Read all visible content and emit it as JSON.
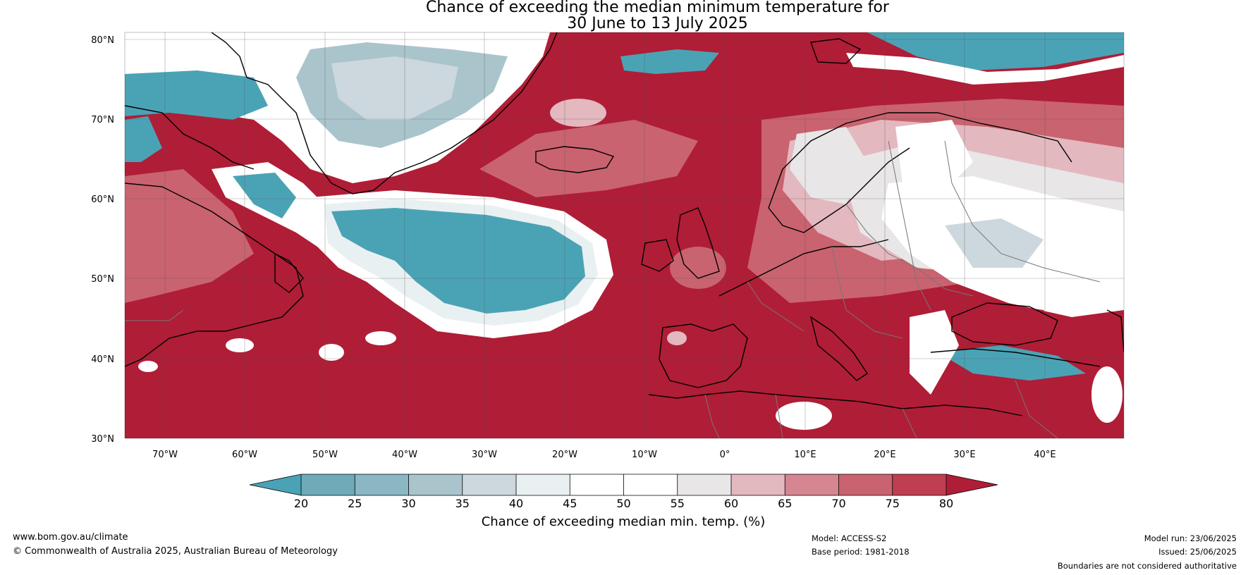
{
  "title": {
    "line1": "Chance of exceeding the median minimum temperature for",
    "line2": "30 June to 13 July 2025"
  },
  "map": {
    "lat_labels": [
      "80°N",
      "70°N",
      "60°N",
      "50°N",
      "40°N",
      "30°N"
    ],
    "lon_labels": [
      "70°W",
      "60°W",
      "50°W",
      "40°W",
      "30°W",
      "20°W",
      "10°W",
      "0°",
      "10°E",
      "20°E",
      "30°E",
      "40°E"
    ],
    "lon_range": [
      -75,
      50
    ],
    "lat_range": [
      30,
      81
    ]
  },
  "colorbar": {
    "title": "Chance of exceeding median min. temp. (%)",
    "ticks": [
      "20",
      "25",
      "30",
      "35",
      "40",
      "45",
      "50",
      "55",
      "60",
      "65",
      "70",
      "75",
      "80"
    ],
    "colors": [
      "#4aa3b5",
      "#6eaab7",
      "#8ab7c3",
      "#aac4cc",
      "#ccd8dd",
      "#e9f0f2",
      "#ffffff",
      "#ffffff",
      "#e8e6e7",
      "#e3b8be",
      "#d58690",
      "#c9636f",
      "#bf3f51",
      "#b01d36"
    ]
  },
  "colors": {
    "warm": "#b01d36",
    "warm_mid": "#c9636f",
    "warm_light": "#e3b8be",
    "cool": "#4aa3b5",
    "cool_light": "#aac4cc",
    "neutral": "#ffffff"
  },
  "footer": {
    "website": "www.bom.gov.au/climate",
    "copyright": "© Commonwealth of Australia 2025, Australian Bureau of Meteorology",
    "model": "Model: ACCESS-S2",
    "base_period": "Base period: 1981-2018",
    "model_run": "Model run: 23/06/2025",
    "issued": "Issued: 25/06/2025",
    "disclaimer": "Boundaries are not considered authoritative"
  }
}
